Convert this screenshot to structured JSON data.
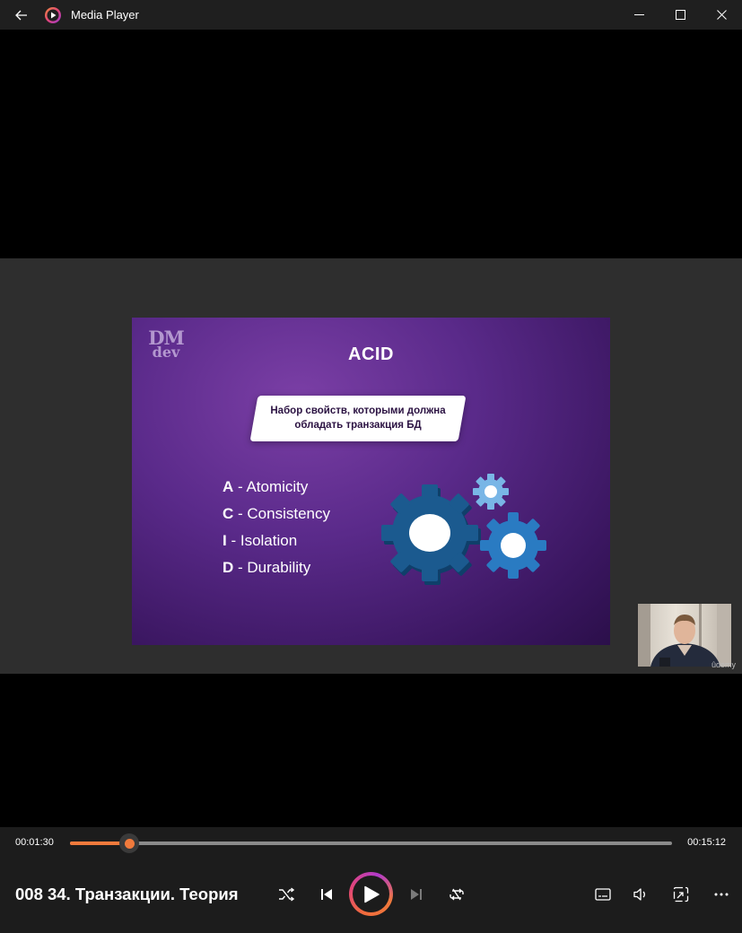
{
  "window": {
    "title": "Media Player"
  },
  "slide": {
    "logo_line1": "DM",
    "logo_line2": "dev",
    "title": "ACID",
    "definition": "Набор свойств, которыми должна обладать транзакция БД",
    "items": [
      {
        "letter": "A",
        "text": " - Atomicity"
      },
      {
        "letter": "C",
        "text": " - Consistency"
      },
      {
        "letter": "I",
        "text": " - Isolation"
      },
      {
        "letter": "D",
        "text": " - Durability"
      }
    ],
    "colors": {
      "gear_dark": "#1b5a8f",
      "gear_mid": "#2a7bc2",
      "gear_light": "#79b6e6"
    }
  },
  "webcam": {
    "watermark": "ûdemy"
  },
  "player": {
    "current_time": "00:01:30",
    "total_time": "00:15:12",
    "progress": 0.0987,
    "now_playing": "008 34. Транзакции. Теория",
    "accent": "#f07a3c"
  }
}
